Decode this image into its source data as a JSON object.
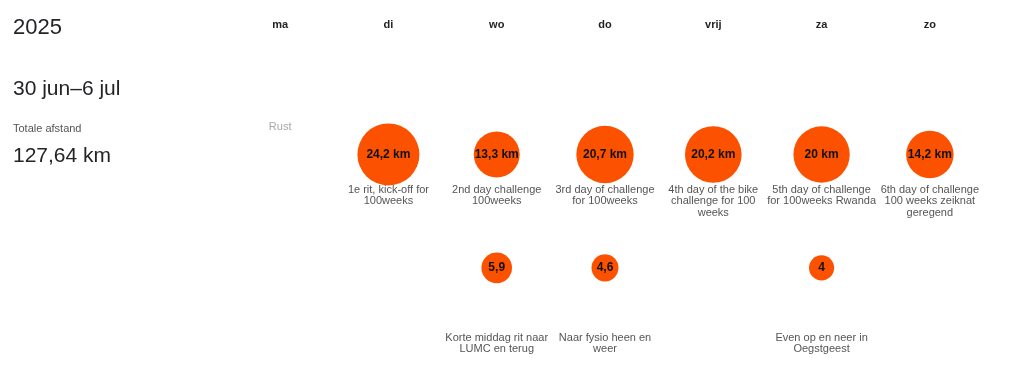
{
  "chart_data": {
    "type": "other",
    "title": "2025",
    "subtitle": "30 jun–6 jul",
    "categories": [
      "ma",
      "di",
      "wo",
      "do",
      "vrij",
      "za",
      "zo"
    ],
    "series": [
      {
        "color": "#fc5200",
        "values": [
          null,
          24.2,
          13.3,
          20.7,
          20.2,
          20,
          14.2
        ],
        "value_labels": [
          null,
          "24,2 km",
          "13,3 km",
          "20,7 km",
          "20,2 km",
          "20 km",
          "14,2 km"
        ]
      },
      {
        "color": "#fc5200",
        "values": [
          null,
          null,
          5.9,
          4.6,
          null,
          4,
          null
        ],
        "value_labels": [
          null,
          null,
          "5,9",
          "4,6",
          null,
          "4",
          null
        ]
      }
    ],
    "annotations": [
      "Totale afstand",
      "127,64 km",
      {
        "text": "Rust",
        "x": "ma"
      },
      {
        "text": "1e rit, kick-off for 100weeks",
        "x": "di"
      },
      {
        "text": "2nd day challenge 100weeks",
        "x": "wo"
      },
      {
        "text": "3rd day of challenge for 100weeks",
        "x": "do"
      },
      {
        "text": "4th day of the bike challenge for 100 weeks",
        "x": "vrij"
      },
      {
        "text": "5th day of challenge for 100weeks Rwanda",
        "x": "za"
      },
      {
        "text": "6th day of challenge 100 weeks zeiknat geregend",
        "x": "zo"
      },
      {
        "text": "Korte middag rit naar LUMC en terug",
        "x": "wo"
      },
      {
        "text": "Naar fysio heen en weer",
        "x": "do"
      },
      {
        "text": "Even op en neer in Oegstgeest",
        "x": "za"
      }
    ]
  }
}
